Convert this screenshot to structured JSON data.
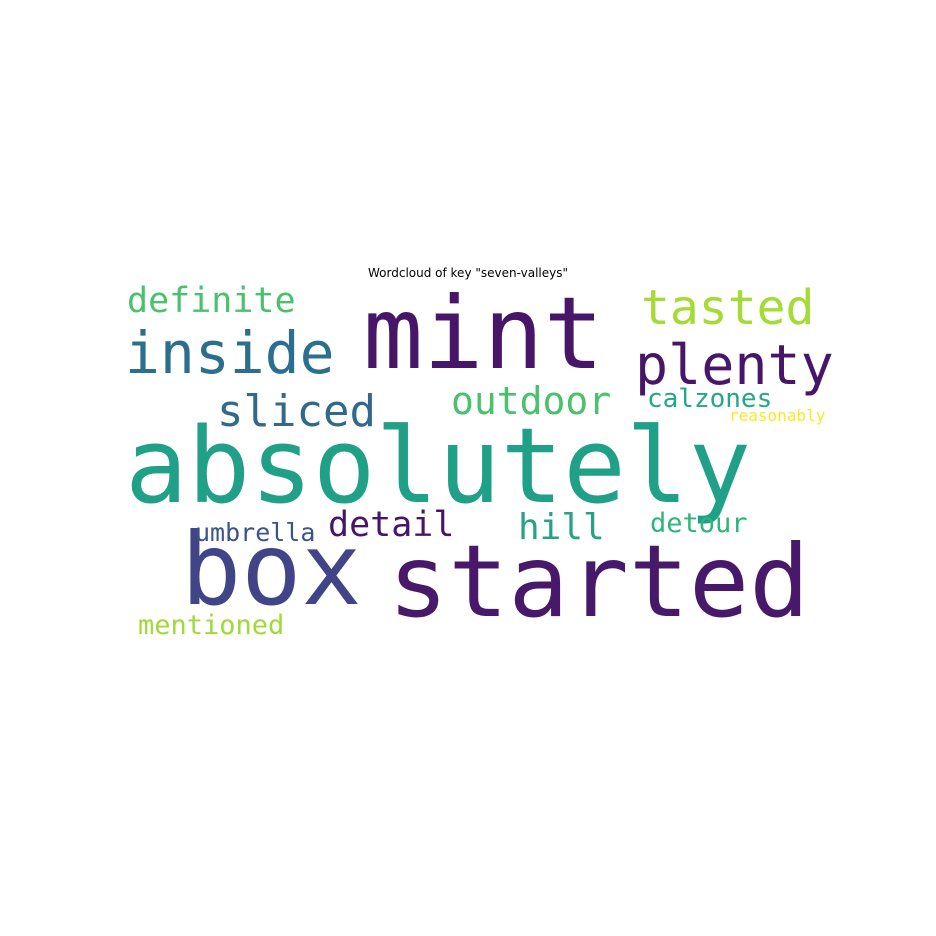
{
  "chart_data": {
    "type": "wordcloud",
    "title": "Wordcloud of key \"seven-valleys\"",
    "words": [
      {
        "text": "absolutely",
        "color": "#21a088"
      },
      {
        "text": "mint",
        "color": "#481668"
      },
      {
        "text": "started",
        "color": "#48186a"
      },
      {
        "text": "box",
        "color": "#414487"
      },
      {
        "text": "inside",
        "color": "#2c6e8e"
      },
      {
        "text": "plenty",
        "color": "#481668"
      },
      {
        "text": "tasted",
        "color": "#a5db36"
      },
      {
        "text": "definite",
        "color": "#4ac16d"
      },
      {
        "text": "sliced",
        "color": "#31688e"
      },
      {
        "text": "outdoor",
        "color": "#4ac16d"
      },
      {
        "text": "calzones",
        "color": "#22a884"
      },
      {
        "text": "reasonably",
        "color": "#fde725"
      },
      {
        "text": "detail",
        "color": "#481668"
      },
      {
        "text": "hill",
        "color": "#26a384"
      },
      {
        "text": "detour",
        "color": "#2fb47c"
      },
      {
        "text": "umbrella",
        "color": "#3b528b"
      },
      {
        "text": "mentioned",
        "color": "#a0da39"
      }
    ]
  }
}
